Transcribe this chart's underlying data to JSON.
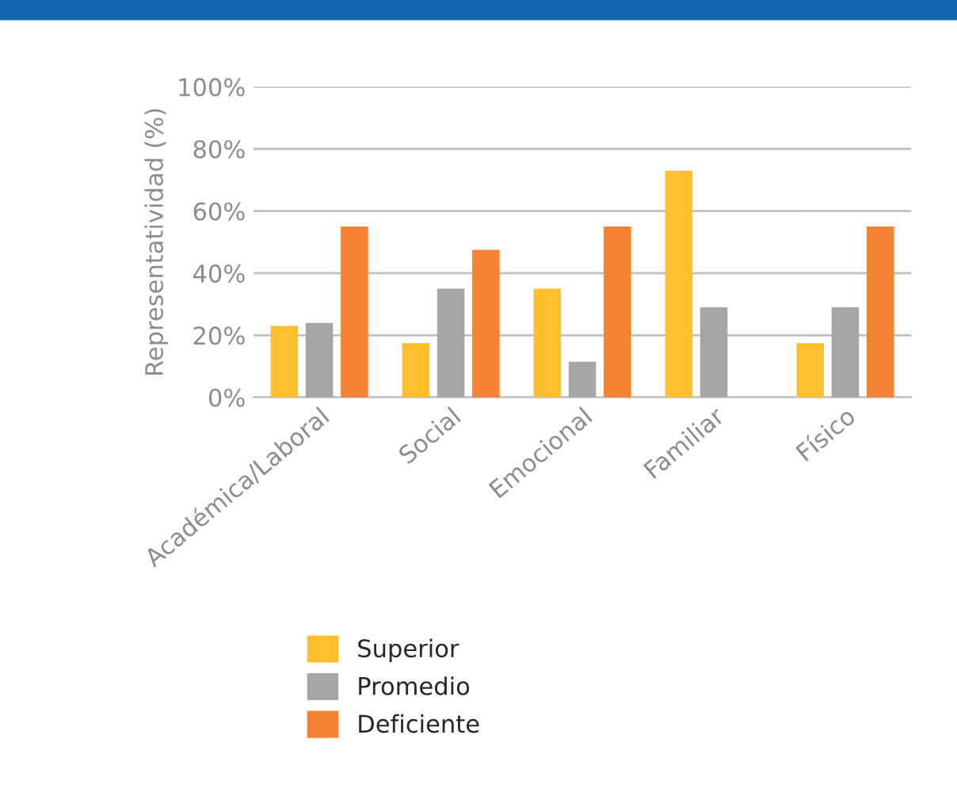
{
  "chart_data": {
    "type": "bar",
    "ylabel": "Representatividad (%)",
    "categories": [
      "Académica/Laboral",
      "Social",
      "Emocional",
      "Familiar",
      "Físico"
    ],
    "series": [
      {
        "name": "Superior",
        "color": "#fdbf2d",
        "values": [
          23,
          17.5,
          35,
          73,
          17.5
        ]
      },
      {
        "name": "Promedio",
        "color": "#a5a5a5",
        "values": [
          24,
          35,
          11.5,
          29,
          29
        ]
      },
      {
        "name": "Deficiente",
        "color": "#f38233",
        "values": [
          55,
          47.5,
          55,
          null,
          55
        ]
      }
    ],
    "ylim": [
      0,
      100
    ],
    "yticks": [
      {
        "value": 0,
        "label": "0%"
      },
      {
        "value": 20,
        "label": "20%"
      },
      {
        "value": 40,
        "label": "40%"
      },
      {
        "value": 60,
        "label": "60%"
      },
      {
        "value": 80,
        "label": "80%"
      },
      {
        "value": 100,
        "label": "100%"
      }
    ],
    "grid": "y",
    "legend": "bottom"
  }
}
